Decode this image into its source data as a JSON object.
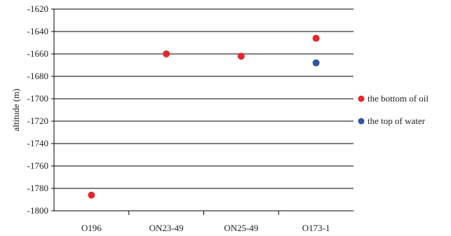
{
  "chart_data": {
    "type": "scatter",
    "categories": [
      "O196",
      "ON23-49",
      "ON25-49",
      "O173-1"
    ],
    "ylabel": "altitude (m)",
    "ylim": [
      -1800,
      -1620
    ],
    "yticks": [
      -1620,
      -1640,
      -1660,
      -1680,
      -1700,
      -1720,
      -1740,
      -1760,
      -1780,
      -1800
    ],
    "grid": true,
    "legend_position": "right",
    "series": [
      {
        "name": "the bottom of oil",
        "color": "#e8262a",
        "values": [
          -1786,
          -1660,
          -1662,
          -1646
        ]
      },
      {
        "name": "the top of water",
        "color": "#2f55a4",
        "values": [
          null,
          null,
          null,
          -1668
        ]
      }
    ]
  }
}
